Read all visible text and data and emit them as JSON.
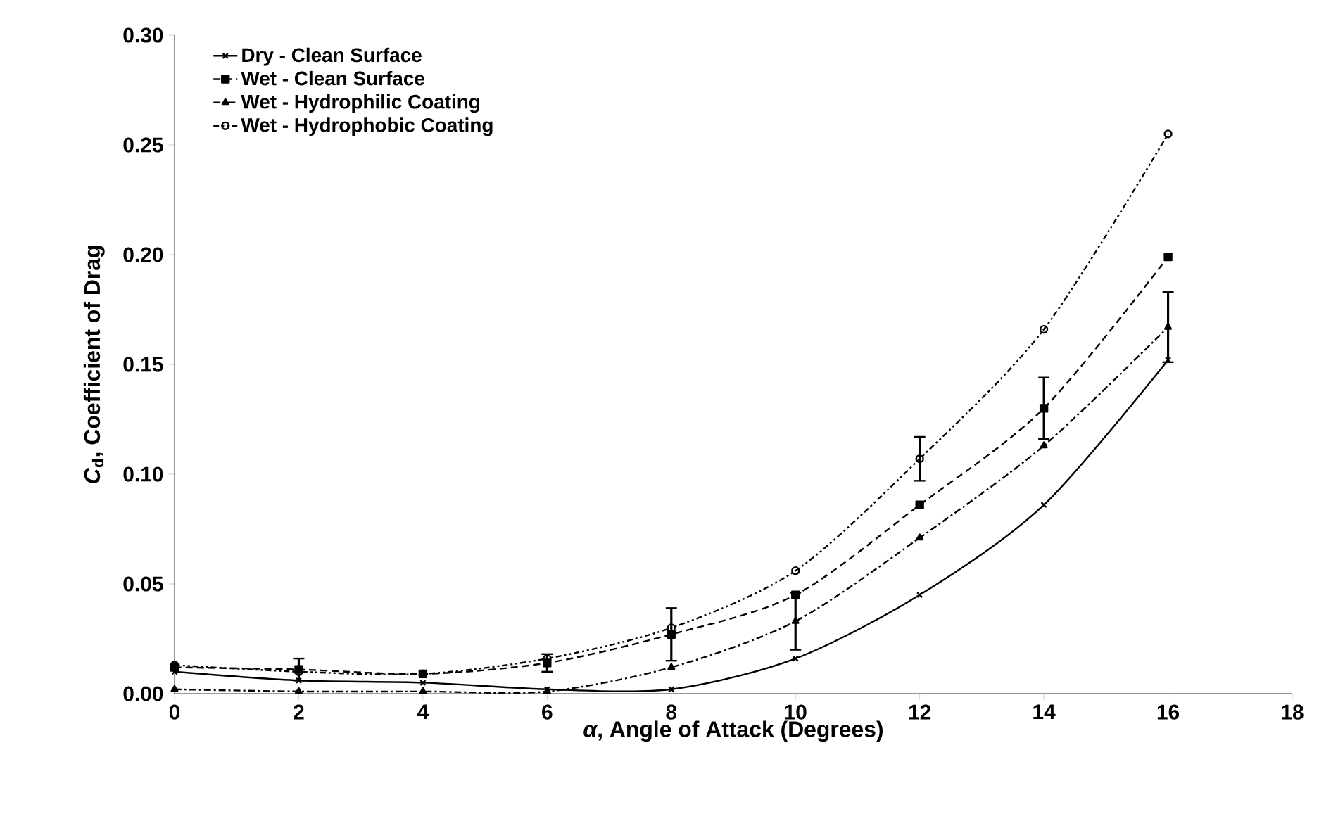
{
  "chart_data": {
    "type": "line",
    "xlabel": "*α*, Angle of Attack (Degrees)",
    "ylabel": "*C*$_{d}$, Coefficient of Drag",
    "x": [
      0,
      2,
      4,
      6,
      8,
      10,
      12,
      14,
      16
    ],
    "series": [
      {
        "name": "Dry  - Clean Surface",
        "color": "#000000",
        "marker": "cross",
        "line_style": "solid",
        "values": [
          0.01,
          0.006,
          0.005,
          0.002,
          0.002,
          0.016,
          0.045,
          0.086,
          0.152
        ]
      },
      {
        "name": "Wet - Clean Surface",
        "color": "#000000",
        "marker": "square",
        "line_style": "dashed",
        "values": [
          0.012,
          0.011,
          0.009,
          0.014,
          0.027,
          0.045,
          0.086,
          0.13,
          0.199
        ],
        "errors": [
          null,
          0.005,
          null,
          0.004,
          0.012,
          null,
          null,
          0.014,
          null
        ]
      },
      {
        "name": "Wet - Hydrophilic Coating",
        "color": "#000000",
        "marker": "triangle",
        "line_style": "dashdot",
        "values": [
          0.002,
          0.001,
          0.001,
          0.001,
          0.012,
          0.033,
          0.071,
          0.113,
          0.167
        ],
        "errors": [
          null,
          null,
          null,
          null,
          null,
          0.013,
          null,
          null,
          0.016
        ]
      },
      {
        "name": "Wet - Hydrophobic Coating",
        "color": "#000000",
        "marker": "circle",
        "line_style": "dashdotdot",
        "values": [
          0.013,
          0.01,
          0.009,
          0.016,
          0.03,
          0.056,
          0.107,
          0.166,
          0.255
        ],
        "errors": [
          null,
          null,
          null,
          null,
          null,
          null,
          0.01,
          null,
          null
        ]
      }
    ],
    "xlim": [
      0,
      18
    ],
    "xticks": [
      0,
      2,
      4,
      6,
      8,
      10,
      12,
      14,
      16,
      18
    ],
    "ylim": [
      0,
      0.3
    ],
    "yticks": [
      {
        "value": 0,
        "label": "0.00"
      },
      {
        "value": 0.05,
        "label": "0.05"
      },
      {
        "value": 0.1,
        "label": "0.10"
      },
      {
        "value": 0.15,
        "label": "0.15"
      },
      {
        "value": 0.2,
        "label": "0.20"
      },
      {
        "value": 0.25,
        "label": "0.25"
      },
      {
        "value": 0.3,
        "label": "0.30"
      }
    ],
    "grid": false,
    "legend": "top left"
  }
}
